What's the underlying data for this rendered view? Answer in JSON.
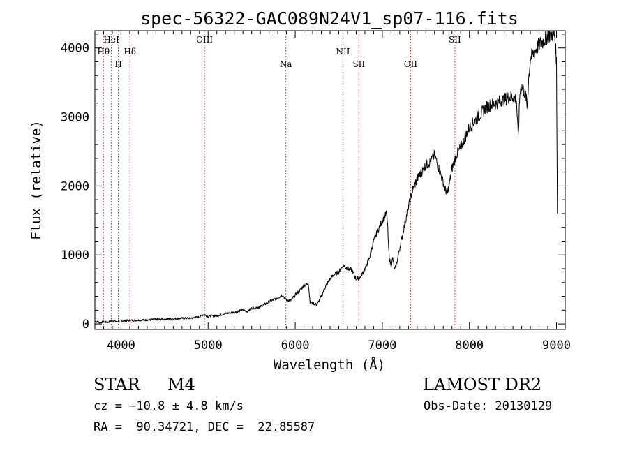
{
  "chart_data": {
    "type": "line",
    "title": "spec-56322-GAC089N24V1_sp07-116.fits",
    "xlabel": "Wavelength (Å)",
    "ylabel": "Flux (relative)",
    "xlim": [
      3700,
      9100
    ],
    "ylim": [
      -80,
      4250
    ],
    "x_ticks": [
      4000,
      5000,
      6000,
      7000,
      8000,
      9000
    ],
    "x_tick_labels": [
      "4000",
      "5000",
      "6000",
      "7000",
      "8000",
      "9000"
    ],
    "x_minor_step": 100,
    "y_ticks": [
      0,
      1000,
      2000,
      3000,
      4000
    ],
    "y_tick_labels": [
      "0",
      "1000",
      "2000",
      "3000",
      "4000"
    ],
    "y_minor_step": 200,
    "line_color": "#000000",
    "marker_color": "#b22222",
    "reference_lines": [
      {
        "label": "Hθ",
        "x": 3798,
        "row": 2
      },
      {
        "label": "HeI",
        "x": 3889,
        "row": 1
      },
      {
        "label": "H",
        "x": 3969,
        "row": 3
      },
      {
        "label": "Hδ",
        "x": 4102,
        "row": 2
      },
      {
        "label": "OIII",
        "x": 4959,
        "row": 1
      },
      {
        "label": "Na",
        "x": 5893,
        "row": 3
      },
      {
        "label": "NII",
        "x": 6548,
        "row": 2
      },
      {
        "label": "SII",
        "x": 6731,
        "row": 3
      },
      {
        "label": "OII",
        "x": 7325,
        "row": 3
      },
      {
        "label": "SII",
        "x": 7833,
        "row": 1
      }
    ],
    "series": [
      {
        "points": [
          [
            3700,
            40
          ],
          [
            3750,
            20
          ],
          [
            3800,
            30
          ],
          [
            3850,
            25
          ],
          [
            3900,
            50
          ],
          [
            3950,
            35
          ],
          [
            4000,
            45
          ],
          [
            4100,
            50
          ],
          [
            4200,
            55
          ],
          [
            4300,
            58
          ],
          [
            4400,
            65
          ],
          [
            4500,
            70
          ],
          [
            4600,
            75
          ],
          [
            4700,
            80
          ],
          [
            4800,
            85
          ],
          [
            4900,
            100
          ],
          [
            4950,
            140
          ],
          [
            4980,
            120
          ],
          [
            5000,
            110
          ],
          [
            5100,
            120
          ],
          [
            5200,
            150
          ],
          [
            5300,
            170
          ],
          [
            5400,
            200
          ],
          [
            5450,
            180
          ],
          [
            5500,
            230
          ],
          [
            5600,
            250
          ],
          [
            5700,
            320
          ],
          [
            5750,
            350
          ],
          [
            5800,
            380
          ],
          [
            5850,
            420
          ],
          [
            5900,
            350
          ],
          [
            5950,
            340
          ],
          [
            6000,
            420
          ],
          [
            6050,
            480
          ],
          [
            6100,
            560
          ],
          [
            6130,
            570
          ],
          [
            6150,
            600
          ],
          [
            6170,
            320
          ],
          [
            6200,
            300
          ],
          [
            6250,
            280
          ],
          [
            6300,
            400
          ],
          [
            6350,
            550
          ],
          [
            6400,
            650
          ],
          [
            6450,
            720
          ],
          [
            6500,
            750
          ],
          [
            6550,
            850
          ],
          [
            6600,
            800
          ],
          [
            6650,
            780
          ],
          [
            6700,
            650
          ],
          [
            6750,
            680
          ],
          [
            6800,
            800
          ],
          [
            6850,
            950
          ],
          [
            6900,
            1200
          ],
          [
            6950,
            1350
          ],
          [
            7000,
            1500
          ],
          [
            7050,
            1600
          ],
          [
            7060,
            1450
          ],
          [
            7070,
            1150
          ],
          [
            7080,
            950
          ],
          [
            7100,
            850
          ],
          [
            7120,
            950
          ],
          [
            7140,
            780
          ],
          [
            7160,
            850
          ],
          [
            7200,
            1100
          ],
          [
            7250,
            1400
          ],
          [
            7300,
            1700
          ],
          [
            7350,
            1950
          ],
          [
            7400,
            2100
          ],
          [
            7450,
            2200
          ],
          [
            7500,
            2300
          ],
          [
            7550,
            2350
          ],
          [
            7600,
            2450
          ],
          [
            7650,
            2250
          ],
          [
            7700,
            2050
          ],
          [
            7720,
            1950
          ],
          [
            7750,
            1900
          ],
          [
            7780,
            2100
          ],
          [
            7800,
            2250
          ],
          [
            7850,
            2450
          ],
          [
            7900,
            2550
          ],
          [
            7950,
            2700
          ],
          [
            8000,
            2850
          ],
          [
            8100,
            3000
          ],
          [
            8200,
            3150
          ],
          [
            8300,
            3200
          ],
          [
            8400,
            3250
          ],
          [
            8450,
            3280
          ],
          [
            8500,
            3300
          ],
          [
            8540,
            3250
          ],
          [
            8560,
            2700
          ],
          [
            8580,
            3350
          ],
          [
            8600,
            3450
          ],
          [
            8650,
            3300
          ],
          [
            8662,
            3130
          ],
          [
            8680,
            3550
          ],
          [
            8700,
            3850
          ],
          [
            8750,
            3950
          ],
          [
            8800,
            4050
          ],
          [
            8850,
            4100
          ],
          [
            8900,
            4180
          ],
          [
            8950,
            4200
          ],
          [
            8980,
            4180
          ],
          [
            9000,
            3800
          ],
          [
            9010,
            1600
          ]
        ]
      }
    ]
  },
  "footer": {
    "object_class": "STAR",
    "subclass": "M4",
    "survey": "LAMOST DR2",
    "velocity": "cz = −10.8 ± 4.8 km/s",
    "obs_date": "Obs-Date: 20130129",
    "coords": "RA =  90.34721, DEC =  22.85587"
  }
}
